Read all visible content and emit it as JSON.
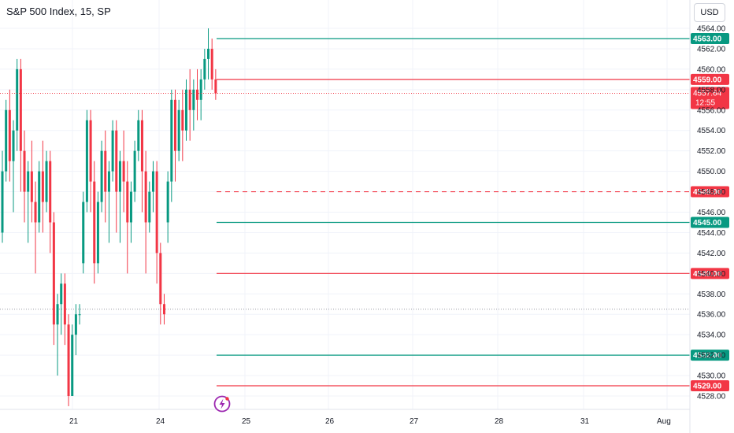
{
  "title": "S&P 500 Index, 15, SP",
  "currency_button": "USD",
  "colors": {
    "up": "#089981",
    "down": "#F23645",
    "grid": "#f0f3fa",
    "axis_text": "#131722"
  },
  "icons": [
    "lightning-icon"
  ],
  "chart_data": {
    "type": "candlestick",
    "title": "S&P 500 Index, 15, SP",
    "ylim": [
      4527,
      4565
    ],
    "y_ticks": [
      "4564.00",
      "4562.00",
      "4560.00",
      "4558.00",
      "4556.00",
      "4554.00",
      "4552.00",
      "4550.00",
      "4548.00",
      "4546.00",
      "4544.00",
      "4542.00",
      "4540.00",
      "4538.00",
      "4536.00",
      "4534.00",
      "4532.00",
      "4530.00",
      "4528.00"
    ],
    "x_ticks": [
      "21",
      "24",
      "25",
      "26",
      "27",
      "28",
      "31",
      "Aug"
    ],
    "current_price": {
      "value": "4557.64",
      "countdown": "12:55"
    },
    "dotted_level": 4536.5,
    "horizontal_levels": [
      {
        "value": 4563.0,
        "label": "4563.00",
        "color": "green",
        "style": "solid"
      },
      {
        "value": 4559.0,
        "label": "4559.00",
        "color": "red",
        "style": "solid"
      },
      {
        "value": 4548.0,
        "label": "4548.00",
        "color": "red",
        "style": "dashed"
      },
      {
        "value": 4545.0,
        "label": "4545.00",
        "color": "green",
        "style": "solid"
      },
      {
        "value": 4540.0,
        "label": "4540.00",
        "color": "red",
        "style": "solid"
      },
      {
        "value": 4532.0,
        "label": "4532.00",
        "color": "green",
        "style": "solid"
      },
      {
        "value": 4529.0,
        "label": "4529.00",
        "color": "red",
        "style": "solid"
      }
    ],
    "candles": [
      [
        4544,
        4552,
        4550,
        4543
      ],
      [
        4550,
        4557,
        4556,
        4549
      ],
      [
        4556,
        4558,
        4551,
        4549
      ],
      [
        4551,
        4555,
        4554,
        4546
      ],
      [
        4554,
        4561,
        4560,
        4552
      ],
      [
        4560,
        4561,
        4552,
        4548
      ],
      [
        4552,
        4554,
        4548,
        4545
      ],
      [
        4548,
        4551,
        4550,
        4543
      ],
      [
        4550,
        4553,
        4547,
        4545
      ],
      [
        4547,
        4549,
        4545,
        4540
      ],
      [
        4545,
        4551,
        4550,
        4544
      ],
      [
        4550,
        4553,
        4547,
        4544
      ],
      [
        4547,
        4552,
        4551,
        4546
      ],
      [
        4551,
        4552,
        4545,
        4542
      ],
      [
        4545,
        4546,
        4535,
        4533
      ],
      [
        4535,
        4538,
        4537,
        4530
      ],
      [
        4537,
        4540,
        4539,
        4534
      ],
      [
        4539,
        4540,
        4535,
        4533
      ],
      [
        4535,
        4536,
        4528,
        4527
      ],
      [
        4528,
        4535,
        4534,
        4528
      ],
      [
        4534,
        4537,
        4536,
        4532
      ],
      [
        4536,
        4537,
        4536,
        4535
      ],
      [
        4541,
        4548,
        4547,
        4540
      ],
      [
        4547,
        4556,
        4555,
        4546
      ],
      [
        4555,
        4556,
        4549,
        4546
      ],
      [
        4549,
        4551,
        4541,
        4539
      ],
      [
        4541,
        4548,
        4547,
        4540
      ],
      [
        4547,
        4553,
        4552,
        4546
      ],
      [
        4552,
        4554,
        4548,
        4545
      ],
      [
        4548,
        4551,
        4550,
        4543
      ],
      [
        4550,
        4555,
        4554,
        4549
      ],
      [
        4554,
        4555,
        4548,
        4544
      ],
      [
        4548,
        4552,
        4551,
        4543
      ],
      [
        4551,
        4554,
        4549,
        4546
      ],
      [
        4549,
        4551,
        4545,
        4540
      ],
      [
        4545,
        4549,
        4548,
        4543
      ],
      [
        4548,
        4553,
        4552,
        4547
      ],
      [
        4552,
        4556,
        4555,
        4551
      ],
      [
        4555,
        4556,
        4550,
        4546
      ],
      [
        4550,
        4552,
        4545,
        4540
      ],
      [
        4545,
        4549,
        4548,
        4544
      ],
      [
        4548,
        4551,
        4550,
        4546
      ],
      [
        4550,
        4551,
        4542,
        4539
      ],
      [
        4542,
        4543,
        4537,
        4535
      ],
      [
        4537,
        4538,
        4536,
        4535
      ],
      [
        4545,
        4550,
        4549,
        4543
      ],
      [
        4549,
        4558,
        4557,
        4547
      ],
      [
        4557,
        4558,
        4552,
        4549
      ],
      [
        4552,
        4557,
        4556,
        4551
      ],
      [
        4556,
        4558,
        4554,
        4551
      ],
      [
        4554,
        4559,
        4558,
        4553
      ],
      [
        4558,
        4560,
        4556,
        4553
      ],
      [
        4556,
        4559,
        4558,
        4554
      ],
      [
        4558,
        4560,
        4557,
        4555
      ],
      [
        4557,
        4560,
        4559,
        4555
      ],
      [
        4559,
        4562,
        4561,
        4558
      ],
      [
        4561,
        4564,
        4562,
        4559
      ],
      [
        4562,
        4563,
        4559,
        4558
      ],
      [
        4559,
        4560,
        4557.64,
        4557
      ]
    ]
  }
}
